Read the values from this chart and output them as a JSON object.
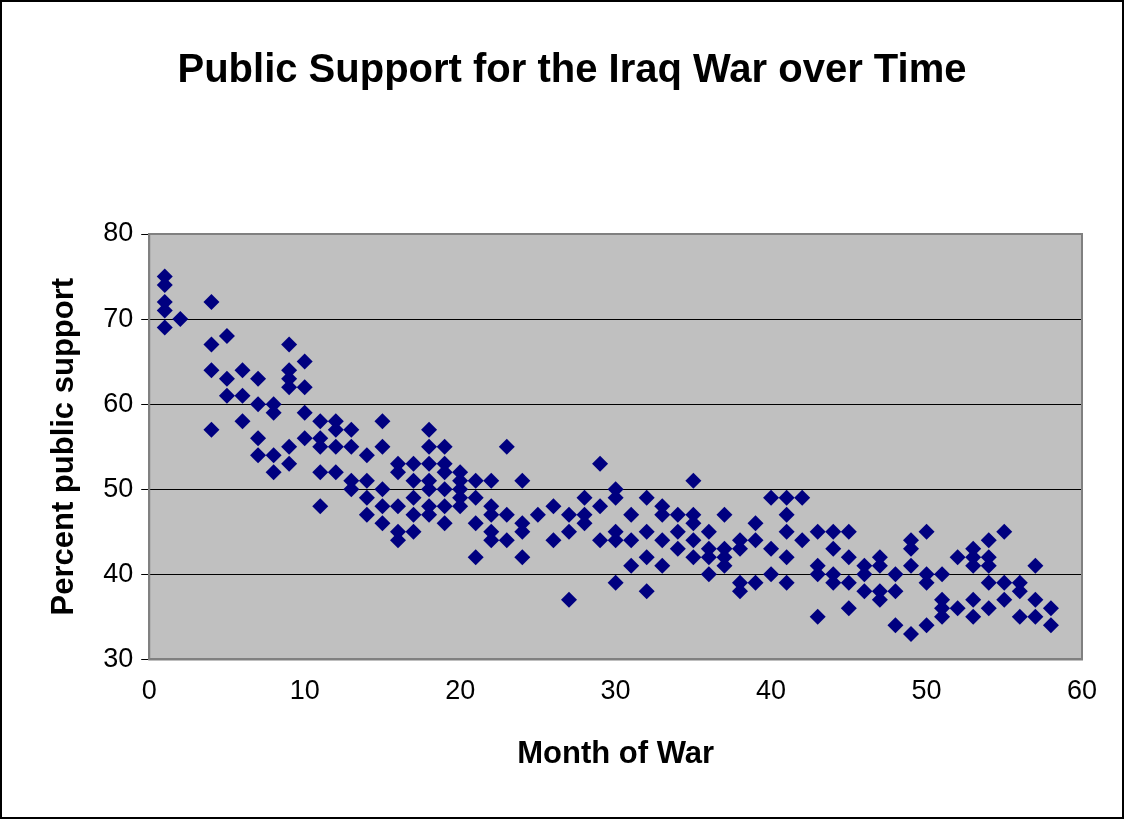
{
  "chart_data": {
    "type": "scatter",
    "title": "Public Support for the Iraq War over Time",
    "xlabel": "Month of War",
    "ylabel": "Percent public support",
    "x": [
      1,
      1,
      1,
      1,
      1,
      2,
      4,
      4,
      4,
      4,
      5,
      5,
      5,
      6,
      6,
      6,
      7,
      7,
      7,
      7,
      8,
      8,
      8,
      8,
      9,
      9,
      9,
      9,
      9,
      9,
      10,
      10,
      10,
      10,
      11,
      11,
      11,
      11,
      11,
      12,
      12,
      12,
      12,
      13,
      13,
      13,
      13,
      14,
      14,
      14,
      14,
      15,
      15,
      15,
      15,
      15,
      16,
      16,
      16,
      16,
      16,
      17,
      17,
      17,
      17,
      17,
      18,
      18,
      18,
      18,
      18,
      18,
      18,
      19,
      19,
      19,
      19,
      19,
      19,
      20,
      20,
      20,
      20,
      20,
      21,
      21,
      21,
      21,
      22,
      22,
      22,
      22,
      22,
      23,
      23,
      23,
      24,
      24,
      24,
      24,
      25,
      26,
      26,
      27,
      27,
      27,
      28,
      28,
      28,
      29,
      29,
      29,
      30,
      30,
      30,
      30,
      30,
      31,
      31,
      31,
      32,
      32,
      32,
      32,
      33,
      33,
      33,
      33,
      34,
      34,
      34,
      35,
      35,
      35,
      35,
      35,
      36,
      36,
      36,
      36,
      37,
      37,
      37,
      37,
      38,
      38,
      38,
      38,
      39,
      39,
      39,
      40,
      40,
      40,
      41,
      41,
      41,
      41,
      41,
      42,
      42,
      43,
      43,
      43,
      43,
      44,
      44,
      44,
      44,
      45,
      45,
      45,
      45,
      46,
      46,
      46,
      47,
      47,
      47,
      47,
      48,
      48,
      48,
      49,
      49,
      49,
      49,
      50,
      50,
      50,
      50,
      51,
      51,
      51,
      51,
      52,
      52,
      53,
      53,
      53,
      53,
      53,
      54,
      54,
      54,
      54,
      54,
      55,
      55,
      55,
      56,
      56,
      56,
      57,
      57,
      57,
      58,
      58
    ],
    "values": [
      75,
      74,
      72,
      71,
      69,
      70,
      72,
      67,
      64,
      57,
      68,
      63,
      61,
      64,
      61,
      58,
      63,
      60,
      56,
      54,
      60,
      59,
      54,
      52,
      67,
      64,
      63,
      62,
      55,
      53,
      65,
      62,
      59,
      56,
      58,
      56,
      55,
      52,
      48,
      58,
      57,
      55,
      52,
      57,
      55,
      51,
      50,
      54,
      51,
      49,
      47,
      58,
      55,
      50,
      48,
      46,
      53,
      52,
      48,
      45,
      44,
      53,
      51,
      49,
      47,
      45,
      57,
      55,
      53,
      51,
      50,
      48,
      47,
      55,
      53,
      52,
      50,
      48,
      46,
      52,
      51,
      50,
      49,
      48,
      51,
      49,
      46,
      42,
      51,
      48,
      47,
      45,
      44,
      55,
      47,
      44,
      51,
      46,
      45,
      42,
      47,
      48,
      44,
      47,
      45,
      37,
      49,
      47,
      46,
      53,
      48,
      44,
      50,
      49,
      45,
      44,
      39,
      47,
      44,
      41,
      49,
      45,
      42,
      38,
      48,
      47,
      44,
      41,
      47,
      45,
      43,
      51,
      47,
      46,
      44,
      42,
      45,
      43,
      42,
      40,
      47,
      43,
      42,
      41,
      44,
      43,
      39,
      38,
      46,
      44,
      39,
      49,
      43,
      40,
      49,
      47,
      45,
      42,
      39,
      49,
      44,
      45,
      41,
      40,
      35,
      45,
      43,
      40,
      39,
      45,
      42,
      39,
      36,
      41,
      40,
      38,
      42,
      41,
      38,
      37,
      40,
      38,
      34,
      44,
      43,
      41,
      33,
      45,
      40,
      39,
      34,
      40,
      37,
      36,
      35,
      42,
      36,
      43,
      42,
      41,
      37,
      35,
      44,
      42,
      41,
      39,
      36,
      45,
      39,
      37,
      39,
      38,
      35,
      41,
      37,
      35,
      36,
      34
    ],
    "color": "#000080",
    "marker": "diamond",
    "xlim": [
      0,
      60
    ],
    "xticks": [
      0,
      10,
      20,
      30,
      40,
      50,
      60
    ],
    "ylim": [
      30,
      80
    ],
    "yticks": [
      30,
      40,
      50,
      60,
      70,
      80
    ],
    "grid": "y",
    "legend": false
  }
}
